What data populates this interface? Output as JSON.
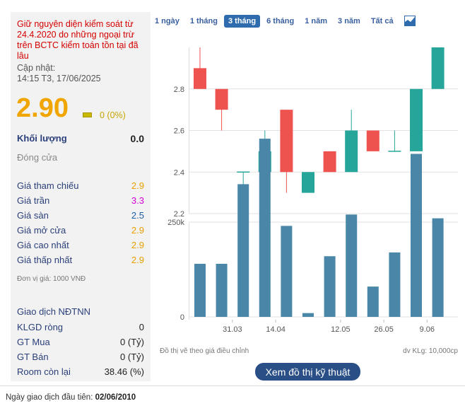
{
  "info": {
    "warning": "Giữ nguyên diện kiểm soát từ 24.4.2020 do những ngoại trừ trên BCTC kiểm toán tồn tại đã lâu",
    "updated_label": "Cập nhật:",
    "updated_value": "14:15 T3, 17/06/2025",
    "price": "2.90",
    "change": "0 (0%)",
    "volume_label": "Khối lượng",
    "volume_value": "0.0",
    "status": "Đóng cửa",
    "prices": [
      {
        "label": "Giá tham chiếu",
        "value": "2.9",
        "color": "#e8a000"
      },
      {
        "label": "Giá trần",
        "value": "3.3",
        "color": "#d400d4"
      },
      {
        "label": "Giá sàn",
        "value": "2.5",
        "color": "#1c5fa8"
      },
      {
        "label": "Giá mở cửa",
        "value": "2.9",
        "color": "#e8a000"
      },
      {
        "label": "Giá cao nhất",
        "value": "2.9",
        "color": "#e8a000"
      },
      {
        "label": "Giá thấp nhất",
        "value": "2.9",
        "color": "#e8a000"
      }
    ],
    "unit_note": "Đơn vị giá: 1000 VNĐ",
    "foreign_title": "Giao dịch NĐTNN",
    "foreign": [
      {
        "label": "KLGD ròng",
        "value": "0"
      },
      {
        "label": "GT Mua",
        "value": "0 (Tỷ)"
      },
      {
        "label": "GT Bán",
        "value": "0 (Tỷ)"
      },
      {
        "label": "Room còn lại",
        "value": "38.46 (%)"
      }
    ]
  },
  "tabs": [
    "1 ngày",
    "1 tháng",
    "3 tháng",
    "6 tháng",
    "1 năm",
    "3 năm",
    "Tất cả"
  ],
  "active_tab": "3 tháng",
  "chart_icon": "line-chart-icon",
  "chart_note": "Đồ thị vẽ theo giá điều chỉnh",
  "volume_unit": "dv KLg: 10,000cp",
  "tech_button": "Xem đồ thị kỹ thuật",
  "first_trade": {
    "label": "Ngày giao dịch đầu tiên:",
    "value": "02/06/2010"
  },
  "colors": {
    "up": "#26a69a",
    "down": "#ef5350",
    "volume": "#4a86a8",
    "accent": "#2e6cad"
  },
  "chart_data": [
    {
      "type": "candlestick",
      "yticks": [
        2.2,
        2.4,
        2.6,
        2.8
      ],
      "ylim": [
        2.2,
        3.0
      ],
      "candles": [
        {
          "open": 2.9,
          "high": 3.0,
          "low": 2.8,
          "close": 2.8
        },
        {
          "open": 2.8,
          "high": 2.8,
          "low": 2.6,
          "close": 2.7
        },
        {
          "open": 2.4,
          "high": 2.4,
          "low": 2.3,
          "close": 2.4
        },
        {
          "open": 2.4,
          "high": 2.6,
          "low": 2.4,
          "close": 2.5
        },
        {
          "open": 2.7,
          "high": 2.7,
          "low": 2.3,
          "close": 2.4
        },
        {
          "open": 2.3,
          "high": 2.4,
          "low": 2.3,
          "close": 2.4
        },
        {
          "open": 2.5,
          "high": 2.5,
          "low": 2.4,
          "close": 2.4
        },
        {
          "open": 2.4,
          "high": 2.7,
          "low": 2.4,
          "close": 2.6
        },
        {
          "open": 2.6,
          "high": 2.6,
          "low": 2.5,
          "close": 2.5
        },
        {
          "open": 2.5,
          "high": 2.6,
          "low": 2.5,
          "close": 2.5
        },
        {
          "open": 2.5,
          "high": 2.8,
          "low": 2.5,
          "close": 2.8
        },
        {
          "open": 2.8,
          "high": 3.0,
          "low": 2.8,
          "close": 3.0
        }
      ]
    },
    {
      "type": "bar",
      "yticks": [
        "0",
        "250k"
      ],
      "ytick_values": [
        0,
        250000
      ],
      "ylim": [
        0,
        500000
      ],
      "values": [
        140000,
        140000,
        350000,
        470000,
        240000,
        10000,
        160000,
        270000,
        80000,
        170000,
        430000,
        260000
      ],
      "xticks": [
        "31.03",
        "14.04",
        "12.05",
        "26.05",
        "9.06"
      ],
      "xtick_index": [
        1.5,
        3.5,
        6.5,
        8.5,
        10.5
      ]
    }
  ]
}
